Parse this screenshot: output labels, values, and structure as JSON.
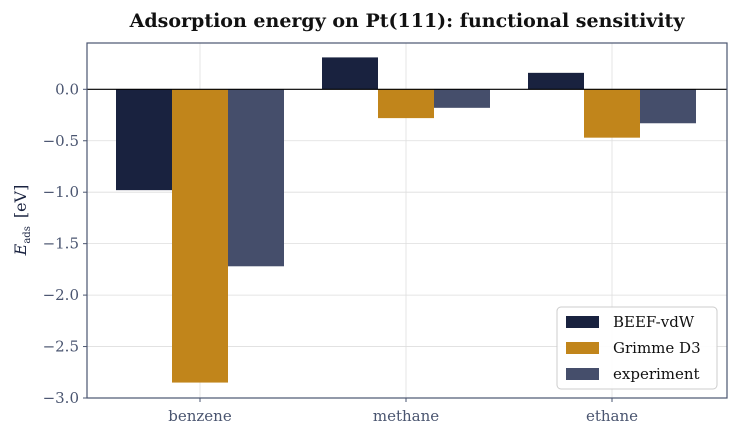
{
  "chart_data": {
    "type": "bar",
    "title": "Adsorption energy on Pt(111): functional sensitivity",
    "ylabel_symbol": "E",
    "ylabel_subscript": "ads",
    "ylabel_unit": "[eV]",
    "xlabel": "",
    "categories": [
      "benzene",
      "methane",
      "ethane"
    ],
    "series": [
      {
        "name": "BEEF-vdW",
        "color": "#19223f",
        "values": [
          -0.98,
          0.31,
          0.16
        ]
      },
      {
        "name": "Grimme D3",
        "color": "#c1851b",
        "values": [
          -2.85,
          -0.28,
          -0.47
        ]
      },
      {
        "name": "experiment",
        "color": "#454e6b",
        "values": [
          -1.72,
          -0.18,
          -0.33
        ]
      }
    ],
    "ylim": [
      -3.0,
      0.45
    ],
    "yticks": [
      0.0,
      -0.5,
      -1.0,
      -1.5,
      -2.0,
      -2.5,
      -3.0
    ],
    "ytick_labels": [
      "0.0",
      "−0.5",
      "−1.0",
      "−1.5",
      "−2.0",
      "−2.5",
      "−3.0"
    ],
    "grid": true,
    "legend_position": "bottom-right",
    "zero_line": true
  }
}
